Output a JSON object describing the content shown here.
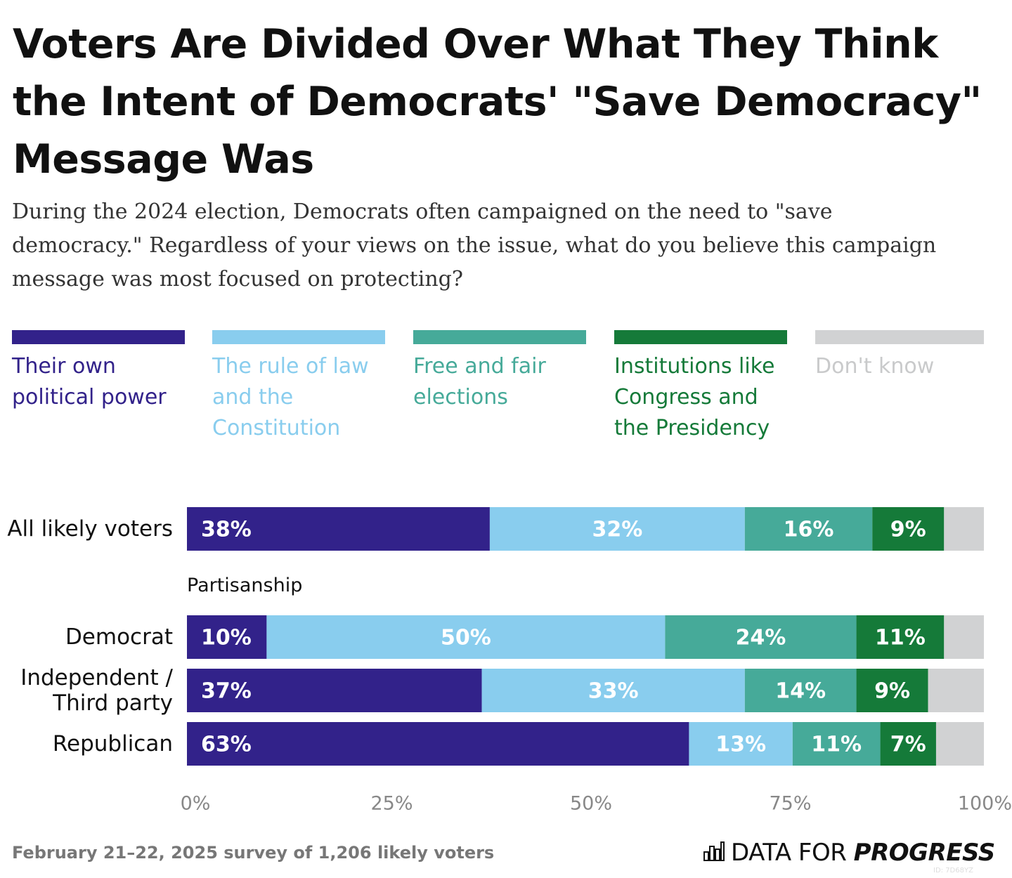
{
  "chart_data": {
    "type": "stacked_bar_horizontal",
    "title": "Voters Are Divided Over What They Think the Intent of Democrats' \"Save Democracy\" Message Was",
    "subtitle": "During the 2024 election, Democrats often campaigned on the need to \"save democracy.\" Regardless of your views on the issue, what do you believe this campaign message was most focused on protecting?",
    "categories": [
      "All likely voters",
      "Democrat",
      "Independent / Third party",
      "Republican"
    ],
    "group_label": "Partisanship",
    "series": [
      {
        "name": "Their own political power",
        "color": "#32228a",
        "values": [
          38,
          10,
          37,
          63
        ],
        "value_labels": [
          "38%",
          "10%",
          "37%",
          "63%"
        ]
      },
      {
        "name": "The rule of law and the Constitution",
        "color": "#89cdee",
        "values": [
          32,
          50,
          33,
          13
        ],
        "value_labels": [
          "32%",
          "50%",
          "33%",
          "13%"
        ]
      },
      {
        "name": "Free and fair elections",
        "color": "#46aa99",
        "values": [
          16,
          24,
          14,
          11
        ],
        "value_labels": [
          "16%",
          "24%",
          "14%",
          "11%"
        ]
      },
      {
        "name": "Institutions like Congress and the Presidency",
        "color": "#157a39",
        "values": [
          9,
          11,
          9,
          7
        ],
        "value_labels": [
          "9%",
          "11%",
          "9%",
          "7%"
        ]
      },
      {
        "name": "Don't know",
        "color": "#d1d2d3",
        "values": [
          5,
          5,
          7,
          6
        ],
        "value_labels": [
          null,
          null,
          null,
          null
        ]
      }
    ],
    "xlim": [
      0,
      100
    ],
    "xticks": [
      {
        "value": 0,
        "label": "0%"
      },
      {
        "value": 25,
        "label": "25%"
      },
      {
        "value": 50,
        "label": "50%"
      },
      {
        "value": 75,
        "label": "75%"
      },
      {
        "value": 100,
        "label": "100%"
      }
    ],
    "note": "February 21–22, 2025 survey of 1,206 likely voters",
    "source": {
      "prefix": "DATA FOR",
      "name": "PROGRESS"
    },
    "chart_id": "ID: 7D68YZ"
  }
}
